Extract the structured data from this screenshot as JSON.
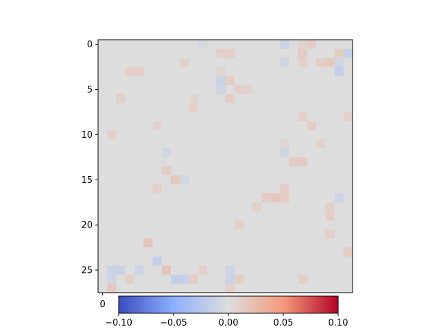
{
  "chart_data": {
    "type": "heatmap",
    "rows": 28,
    "cols": 28,
    "colormap": "coolwarm",
    "color_range": [
      -0.1,
      0.1
    ],
    "y_ticks": [
      0,
      5,
      10,
      15,
      20,
      25
    ],
    "x_ticks_visible": [
      0
    ],
    "colorbar": {
      "orientation": "horizontal",
      "placement": "bottom",
      "ticks": [
        -0.1,
        -0.05,
        0.0,
        0.05,
        0.1
      ],
      "tick_labels": [
        "−0.10",
        "−0.05",
        "0.00",
        "0.05",
        "0.10"
      ]
    },
    "cells": [
      {
        "r": 0,
        "c": 11,
        "v": -0.006
      },
      {
        "r": 0,
        "c": 20,
        "v": -0.012
      },
      {
        "r": 0,
        "c": 22,
        "v": 0.008
      },
      {
        "r": 0,
        "c": 23,
        "v": 0.012
      },
      {
        "r": 1,
        "c": 13,
        "v": 0.01
      },
      {
        "r": 1,
        "c": 14,
        "v": 0.012
      },
      {
        "r": 1,
        "c": 22,
        "v": 0.014
      },
      {
        "r": 1,
        "c": 26,
        "v": 0.012
      },
      {
        "r": 1,
        "c": 27,
        "v": -0.014
      },
      {
        "r": 2,
        "c": 9,
        "v": 0.008
      },
      {
        "r": 2,
        "c": 20,
        "v": -0.01
      },
      {
        "r": 2,
        "c": 22,
        "v": 0.01
      },
      {
        "r": 2,
        "c": 24,
        "v": 0.012
      },
      {
        "r": 2,
        "c": 25,
        "v": 0.016
      },
      {
        "r": 2,
        "c": 26,
        "v": -0.01
      },
      {
        "r": 3,
        "c": 3,
        "v": 0.01
      },
      {
        "r": 3,
        "c": 4,
        "v": 0.012
      },
      {
        "r": 3,
        "c": 13,
        "v": 0.006
      },
      {
        "r": 3,
        "c": 26,
        "v": -0.016
      },
      {
        "r": 4,
        "c": 13,
        "v": -0.012
      },
      {
        "r": 4,
        "c": 14,
        "v": 0.012
      },
      {
        "r": 5,
        "c": 13,
        "v": -0.01
      },
      {
        "r": 5,
        "c": 15,
        "v": 0.01
      },
      {
        "r": 5,
        "c": 16,
        "v": 0.008
      },
      {
        "r": 6,
        "c": 2,
        "v": 0.01
      },
      {
        "r": 6,
        "c": 10,
        "v": 0.006
      },
      {
        "r": 6,
        "c": 14,
        "v": 0.012
      },
      {
        "r": 7,
        "c": 10,
        "v": 0.01
      },
      {
        "r": 8,
        "c": 27,
        "v": 0.01
      },
      {
        "r": 8,
        "c": 22,
        "v": 0.01
      },
      {
        "r": 9,
        "c": 6,
        "v": 0.008
      },
      {
        "r": 9,
        "c": 23,
        "v": 0.012
      },
      {
        "r": 10,
        "c": 1,
        "v": 0.008
      },
      {
        "r": 11,
        "c": 20,
        "v": 0.006
      },
      {
        "r": 11,
        "c": 24,
        "v": 0.008
      },
      {
        "r": 12,
        "c": 7,
        "v": -0.008
      },
      {
        "r": 12,
        "c": 20,
        "v": -0.01
      },
      {
        "r": 13,
        "c": 21,
        "v": 0.012
      },
      {
        "r": 13,
        "c": 22,
        "v": 0.014
      },
      {
        "r": 14,
        "c": 7,
        "v": 0.014
      },
      {
        "r": 15,
        "c": 8,
        "v": 0.016
      },
      {
        "r": 15,
        "c": 9,
        "v": -0.008
      },
      {
        "r": 16,
        "c": 6,
        "v": 0.01
      },
      {
        "r": 16,
        "c": 20,
        "v": 0.012
      },
      {
        "r": 17,
        "c": 18,
        "v": 0.014
      },
      {
        "r": 17,
        "c": 19,
        "v": 0.016
      },
      {
        "r": 17,
        "c": 20,
        "v": 0.014
      },
      {
        "r": 17,
        "c": 26,
        "v": -0.01
      },
      {
        "r": 18,
        "c": 17,
        "v": 0.01
      },
      {
        "r": 18,
        "c": 25,
        "v": 0.01
      },
      {
        "r": 19,
        "c": 25,
        "v": 0.012
      },
      {
        "r": 20,
        "c": 15,
        "v": 0.01
      },
      {
        "r": 21,
        "c": 25,
        "v": 0.01
      },
      {
        "r": 22,
        "c": 5,
        "v": 0.018
      },
      {
        "r": 23,
        "c": 27,
        "v": 0.012
      },
      {
        "r": 24,
        "c": 6,
        "v": -0.016
      },
      {
        "r": 25,
        "c": 1,
        "v": -0.012
      },
      {
        "r": 25,
        "c": 2,
        "v": -0.012
      },
      {
        "r": 25,
        "c": 4,
        "v": -0.01
      },
      {
        "r": 25,
        "c": 7,
        "v": 0.018
      },
      {
        "r": 25,
        "c": 11,
        "v": 0.01
      },
      {
        "r": 25,
        "c": 14,
        "v": -0.01
      },
      {
        "r": 26,
        "c": 1,
        "v": -0.01
      },
      {
        "r": 26,
        "c": 3,
        "v": 0.01
      },
      {
        "r": 26,
        "c": 8,
        "v": -0.016
      },
      {
        "r": 26,
        "c": 9,
        "v": -0.014
      },
      {
        "r": 26,
        "c": 10,
        "v": 0.012
      },
      {
        "r": 26,
        "c": 14,
        "v": -0.012
      },
      {
        "r": 26,
        "c": 15,
        "v": 0.012
      },
      {
        "r": 26,
        "c": 22,
        "v": 0.01
      },
      {
        "r": 27,
        "c": 1,
        "v": 0.016
      },
      {
        "r": 27,
        "c": 14,
        "v": 0.01
      }
    ]
  }
}
